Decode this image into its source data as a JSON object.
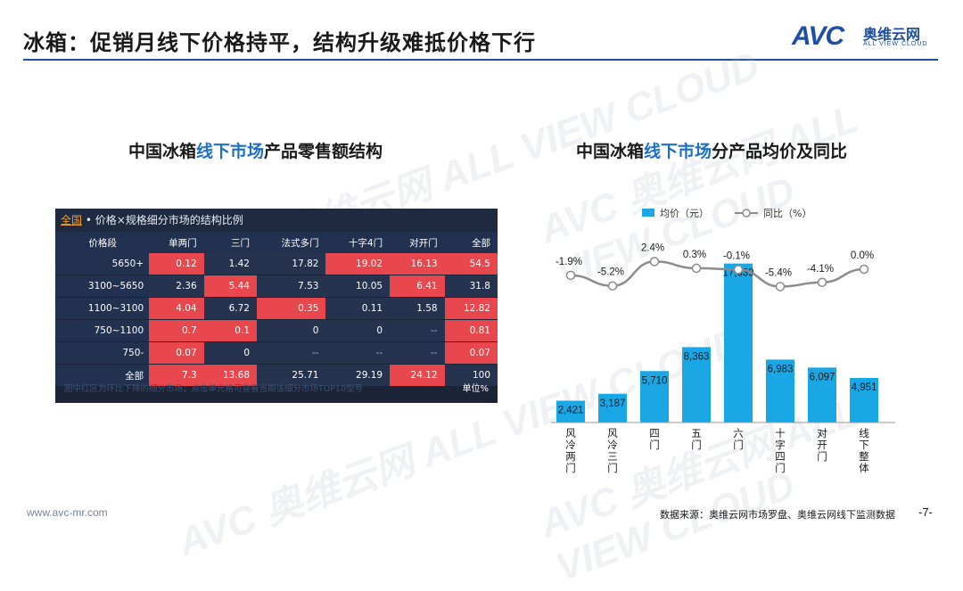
{
  "page": {
    "title": "冰箱：促销月线下价格持平，结构升级难抵价格下行",
    "logo_avc": "AVC",
    "logo_cn": "奥维云网",
    "logo_en": "ALL VIEW CLOUD",
    "footer_url": "www.avc-mr.com",
    "footer_source": "数据来源：奥维云网市场罗盘、奥维云网线下监测数据",
    "page_number": "-7-",
    "watermark": "AVC 奥维云网 ALL VIEW CLOUD",
    "accent_color": "#1f4fa3",
    "highlight_color": "#e8484d"
  },
  "left_title": {
    "pre": "中国冰箱",
    "hl": "线下市场",
    "post": "产品零售额结构"
  },
  "right_title": {
    "pre": "中国冰箱",
    "hl": "线下市场",
    "post": "分产品均价及同比"
  },
  "table": {
    "tab_all": "全国",
    "caption": " • 价格×规格细分市场的结构比例",
    "headers": [
      "价格段",
      "单两门",
      "三门",
      "法式多门",
      "十字4门",
      "对开门",
      "全部"
    ],
    "rows": [
      {
        "label": "5650+",
        "cells": [
          "0.12",
          "1.42",
          "17.82",
          "19.02",
          "16.13",
          "54.5"
        ],
        "red": [
          true,
          false,
          false,
          true,
          true,
          true
        ]
      },
      {
        "label": "3100~5650",
        "cells": [
          "2.36",
          "5.44",
          "7.53",
          "10.05",
          "6.41",
          "31.8"
        ],
        "red": [
          false,
          true,
          false,
          false,
          true,
          false
        ]
      },
      {
        "label": "1100~3100",
        "cells": [
          "4.04",
          "6.72",
          "0.35",
          "0.11",
          "1.58",
          "12.82"
        ],
        "red": [
          true,
          false,
          true,
          false,
          false,
          true
        ]
      },
      {
        "label": "750~1100",
        "cells": [
          "0.7",
          "0.1",
          "0",
          "0",
          "--",
          "0.81"
        ],
        "red": [
          true,
          true,
          false,
          false,
          false,
          true
        ]
      },
      {
        "label": "750-",
        "cells": [
          "0.07",
          "0",
          "--",
          "--",
          "--",
          "0.07"
        ],
        "red": [
          true,
          false,
          false,
          false,
          false,
          true
        ]
      },
      {
        "label": "全部",
        "cells": [
          "7.3",
          "13.68",
          "25.71",
          "29.19",
          "24.12",
          "100"
        ],
        "red": [
          true,
          true,
          false,
          false,
          true,
          false
        ]
      }
    ],
    "note": "图中红区为环比下降的细分市场；点击单元格可查看当期该细分市场TOP10型号",
    "unit": "单位%"
  },
  "chart_data": {
    "type": "bar",
    "categories": [
      "风冷两门",
      "风冷三门",
      "四门",
      "五门",
      "六门",
      "十字四门",
      "对开门",
      "线下整体"
    ],
    "series": [
      {
        "name": "均价（元）",
        "type": "bar",
        "values": [
          2421,
          3187,
          5710,
          8363,
          17639,
          6983,
          6097,
          4951
        ],
        "color": "#1aa7e6",
        "labels": [
          "2,421",
          "3,187",
          "5,710",
          "8,363",
          "17,639",
          "6,983",
          "6,097",
          "4,951"
        ]
      },
      {
        "name": "同比（%）",
        "type": "line",
        "values": [
          -1.9,
          -5.2,
          2.4,
          0.3,
          -0.1,
          -5.4,
          -4.1,
          0.0
        ],
        "color": "#8c8c8c",
        "labels": [
          "-1.9%",
          "-5.2%",
          "2.4%",
          "0.3%",
          "-0.1%",
          "-5.4%",
          "-4.1%",
          "0.0%"
        ]
      }
    ],
    "ylim": [
      0,
      18000
    ],
    "y2lim": [
      -30,
      5
    ],
    "legend_position": "top",
    "grid": false
  }
}
